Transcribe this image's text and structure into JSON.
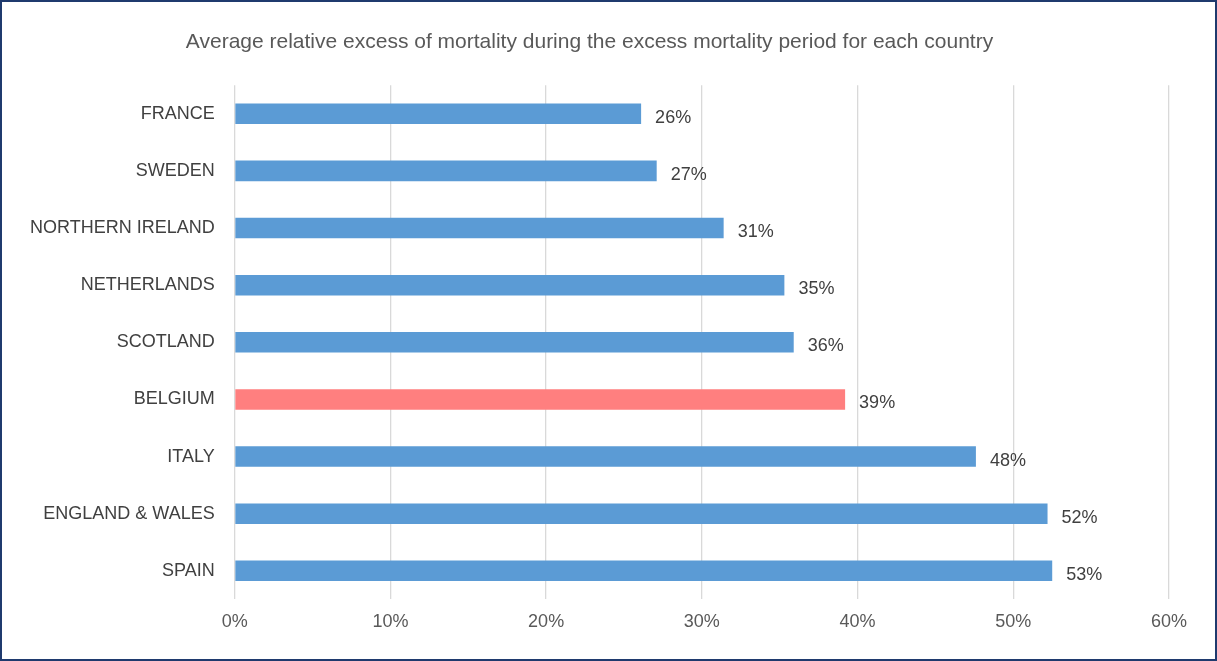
{
  "chart_data": {
    "type": "bar",
    "orientation": "horizontal",
    "title": "Average relative excess of mortality during the excess mortality period for each country",
    "categories": [
      "FRANCE",
      "SWEDEN",
      "NORTHERN IRELAND",
      "NETHERLANDS",
      "SCOTLAND",
      "BELGIUM",
      "ITALY",
      "ENGLAND & WALES",
      "SPAIN"
    ],
    "values": [
      26.1,
      27.1,
      31.4,
      35.3,
      35.9,
      39.2,
      47.6,
      52.2,
      52.5
    ],
    "colors": [
      "#5b9bd5",
      "#5b9bd5",
      "#5b9bd5",
      "#5b9bd5",
      "#5b9bd5",
      "#ff7f7f",
      "#5b9bd5",
      "#5b9bd5",
      "#5b9bd5"
    ],
    "value_labels": [
      "26%",
      "27%",
      "31%",
      "35%",
      "36%",
      "39%",
      "48%",
      "52%",
      "53%"
    ],
    "xlim": [
      0,
      60
    ],
    "xticks": [
      {
        "value": 0,
        "label": "0%"
      },
      {
        "value": 10,
        "label": "10%"
      },
      {
        "value": 20,
        "label": "20%"
      },
      {
        "value": 30,
        "label": "30%"
      },
      {
        "value": 40,
        "label": "40%"
      },
      {
        "value": 50,
        "label": "50%"
      },
      {
        "value": 60,
        "label": "60%"
      }
    ],
    "grid": "x",
    "legend": false
  }
}
